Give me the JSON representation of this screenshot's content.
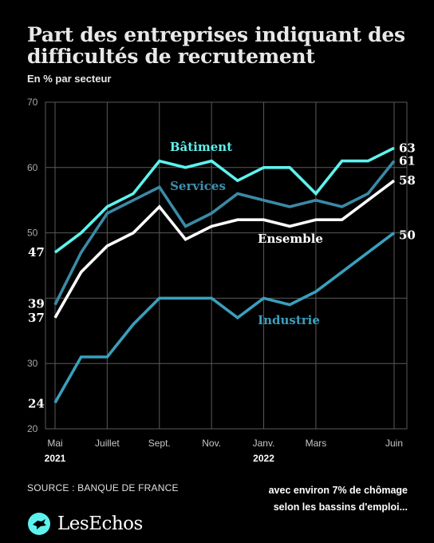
{
  "header": {
    "title": "Part des entreprises indiquant des difficultés de recrutement",
    "subtitle": "En % par secteur"
  },
  "footer": {
    "source": "SOURCE : BANQUE DE FRANCE",
    "caption_line1": "avec environ 7% de chômage",
    "caption_line2": "selon les bassins d'emploi...",
    "logo_text": "LesEchos",
    "logo_icon": "les-echos-logo-icon"
  },
  "chart_data": {
    "type": "line",
    "title": "Part des entreprises indiquant des difficultés de recrutement",
    "subtitle": "En % par secteur",
    "x": [
      "2021-05",
      "2021-06",
      "2021-07",
      "2021-08",
      "2021-09",
      "2021-10",
      "2021-11",
      "2021-12",
      "2022-01",
      "2022-02",
      "2022-03",
      "2022-04",
      "2022-05",
      "2022-06"
    ],
    "x_tick_labels": [
      {
        "x": "2021-05",
        "label": "Mai",
        "year": "2021"
      },
      {
        "x": "2021-07",
        "label": "Juillet",
        "year": ""
      },
      {
        "x": "2021-09",
        "label": "Sept.",
        "year": ""
      },
      {
        "x": "2021-11",
        "label": "Nov.",
        "year": ""
      },
      {
        "x": "2022-01",
        "label": "Janv.",
        "year": "2022"
      },
      {
        "x": "2022-03",
        "label": "Mars",
        "year": ""
      },
      {
        "x": "2022-06",
        "label": "Juin",
        "year": ""
      }
    ],
    "ylim": [
      20,
      70
    ],
    "y_ticks": [
      20,
      30,
      40,
      50,
      60,
      70
    ],
    "y_tick_labels": [
      "20",
      "30",
      "",
      "50",
      "60",
      "70"
    ],
    "grid": true,
    "series": [
      {
        "name": "Bâtiment",
        "color": "#5ef2ee",
        "label_color": "#5ef2ee",
        "values": [
          47,
          50,
          54,
          56,
          61,
          60,
          61,
          58,
          60,
          60,
          56,
          61,
          61,
          63
        ],
        "start_label": "47",
        "end_label": "63"
      },
      {
        "name": "Services",
        "color": "#3b8aa6",
        "label_color": "#3e8fae",
        "values": [
          39,
          47,
          53,
          55,
          57,
          51,
          53,
          56,
          55,
          54,
          55,
          54,
          56,
          61
        ],
        "start_label": "39",
        "end_label": "61"
      },
      {
        "name": "Ensemble",
        "color": "#ffffff",
        "label_color": "#ffffff",
        "values": [
          37,
          44,
          48,
          50,
          54,
          49,
          51,
          52,
          52,
          51,
          52,
          52,
          55,
          58
        ],
        "start_label": "37",
        "end_label": "58"
      },
      {
        "name": "Industrie",
        "color": "#3a9fbd",
        "label_color": "#3a9fbd",
        "values": [
          24,
          31,
          31,
          36,
          40,
          40,
          40,
          37,
          40,
          39,
          41,
          44,
          47,
          50
        ],
        "start_label": "24",
        "end_label": "50"
      }
    ]
  }
}
